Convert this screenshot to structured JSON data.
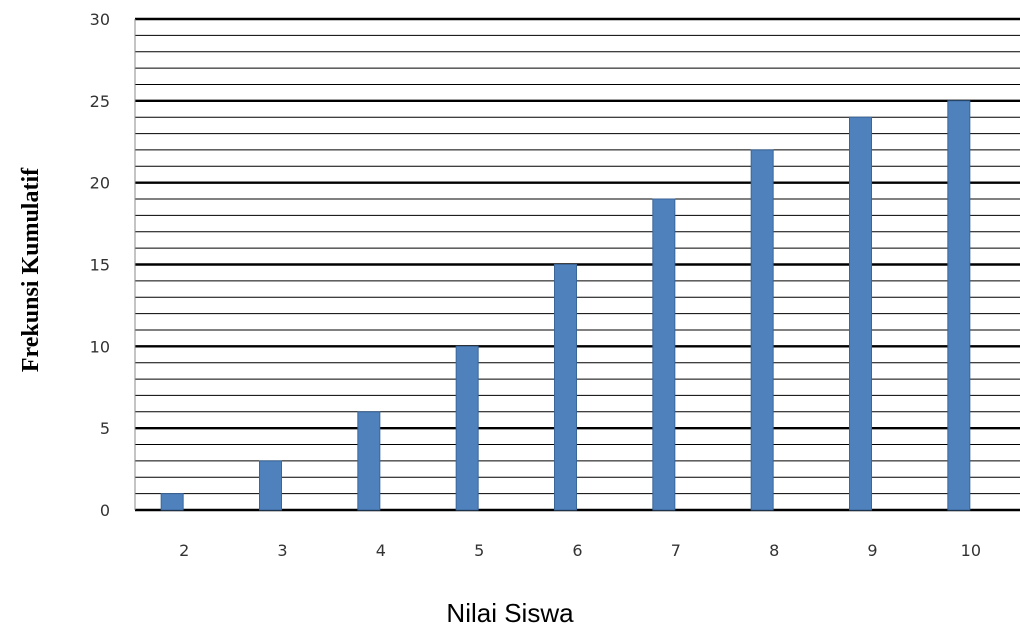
{
  "chart_data": {
    "type": "bar",
    "categories": [
      "2",
      "3",
      "4",
      "5",
      "6",
      "7",
      "8",
      "9",
      "10"
    ],
    "values": [
      1,
      3,
      6,
      10,
      15,
      19,
      22,
      24,
      25
    ],
    "title": "",
    "xlabel": "Nilai Siswa",
    "ylabel": "Frekunsi Kumulatif",
    "ylim": [
      0,
      30
    ],
    "yticks": [
      "0",
      "5",
      "10",
      "15",
      "20",
      "25",
      "30"
    ],
    "grid": true,
    "legend": "none",
    "bar_color": "#4f81bd",
    "bar_edge_color": "#3a6699"
  }
}
